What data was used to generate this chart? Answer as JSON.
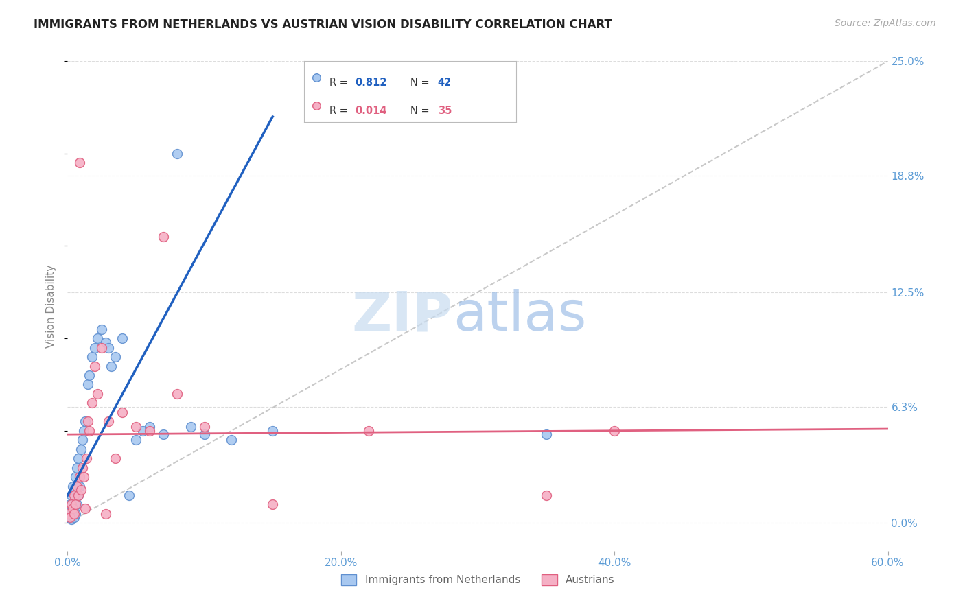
{
  "title": "IMMIGRANTS FROM NETHERLANDS VS AUSTRIAN VISION DISABILITY CORRELATION CHART",
  "source": "Source: ZipAtlas.com",
  "ylabel": "Vision Disability",
  "blue_label": "Immigrants from Netherlands",
  "pink_label": "Austrians",
  "blue_R": "0.812",
  "blue_N": "42",
  "pink_R": "0.014",
  "pink_N": "35",
  "blue_color": "#A8C8F0",
  "pink_color": "#F5B0C5",
  "blue_edge": "#6090D0",
  "pink_edge": "#E06080",
  "blue_line_color": "#2060C0",
  "pink_line_color": "#E06080",
  "title_color": "#222222",
  "tick_color": "#5B9BD5",
  "grid_color": "#DDDDDD",
  "xlim": [
    0.0,
    60.0
  ],
  "ylim": [
    -1.5,
    25.0
  ],
  "xlabel_vals": [
    0.0,
    20.0,
    40.0,
    60.0
  ],
  "xlabel_labels": [
    "0.0%",
    "20.0%",
    "40.0%",
    "60.0%"
  ],
  "ylabel_vals": [
    0.0,
    6.3,
    12.5,
    18.8,
    25.0
  ],
  "ylabel_labels": [
    "0.0%",
    "6.3%",
    "12.5%",
    "18.8%",
    "25.0%"
  ],
  "blue_scatter_x": [
    0.1,
    0.2,
    0.2,
    0.3,
    0.3,
    0.4,
    0.4,
    0.5,
    0.5,
    0.6,
    0.6,
    0.7,
    0.7,
    0.8,
    0.8,
    0.9,
    1.0,
    1.1,
    1.2,
    1.3,
    1.5,
    1.6,
    1.8,
    2.0,
    2.2,
    2.5,
    2.8,
    3.0,
    3.2,
    3.5,
    4.0,
    4.5,
    5.0,
    5.5,
    6.0,
    7.0,
    8.0,
    9.0,
    10.0,
    12.0,
    15.0,
    35.0
  ],
  "blue_scatter_y": [
    0.3,
    0.5,
    1.0,
    0.2,
    1.5,
    0.4,
    2.0,
    0.3,
    1.8,
    0.5,
    2.5,
    1.0,
    3.0,
    1.5,
    3.5,
    2.0,
    4.0,
    4.5,
    5.0,
    5.5,
    7.5,
    8.0,
    9.0,
    9.5,
    10.0,
    10.5,
    9.8,
    9.5,
    8.5,
    9.0,
    10.0,
    1.5,
    4.5,
    5.0,
    5.2,
    4.8,
    20.0,
    5.2,
    4.8,
    4.5,
    5.0,
    4.8
  ],
  "pink_scatter_x": [
    0.1,
    0.2,
    0.3,
    0.4,
    0.5,
    0.5,
    0.6,
    0.7,
    0.8,
    0.9,
    1.0,
    1.1,
    1.2,
    1.4,
    1.5,
    1.6,
    1.8,
    2.0,
    2.2,
    2.5,
    3.0,
    3.5,
    4.0,
    5.0,
    6.0,
    7.0,
    8.0,
    10.0,
    15.0,
    22.0,
    35.0,
    40.0,
    2.8,
    1.3,
    0.9
  ],
  "pink_scatter_y": [
    0.5,
    0.3,
    1.0,
    0.8,
    0.5,
    1.5,
    1.0,
    2.0,
    1.5,
    2.5,
    1.8,
    3.0,
    2.5,
    3.5,
    5.5,
    5.0,
    6.5,
    8.5,
    7.0,
    9.5,
    5.5,
    3.5,
    6.0,
    5.2,
    5.0,
    15.5,
    7.0,
    5.2,
    1.0,
    5.0,
    1.5,
    5.0,
    0.5,
    0.8,
    19.5
  ],
  "blue_trend_x": [
    0.0,
    15.0
  ],
  "blue_trend_y": [
    1.5,
    22.0
  ],
  "pink_trend_y_intercept": 4.8,
  "pink_trend_slope": 0.005,
  "diag_line_x": [
    0.0,
    60.0
  ],
  "diag_line_y": [
    0.0,
    25.0
  ]
}
